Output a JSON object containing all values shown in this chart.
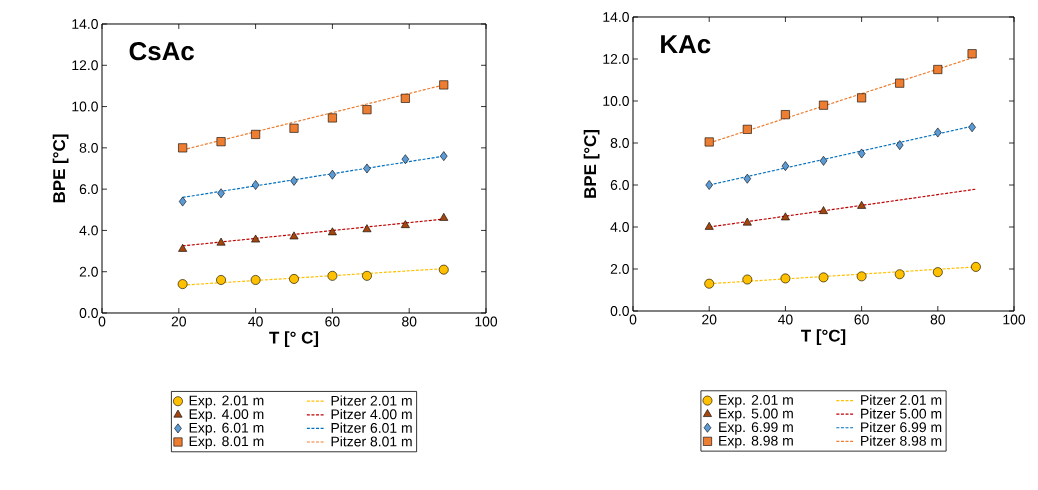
{
  "chart_data": [
    {
      "type": "scatter",
      "title": "CsAc",
      "xlabel": "T [° C]",
      "ylabel": "BPE [°C]",
      "xlim": [
        0,
        100
      ],
      "ylim": [
        0,
        14
      ],
      "xticks": [
        0,
        20,
        40,
        60,
        80,
        100
      ],
      "yticks": [
        {
          "value": 0,
          "label": "0.0"
        },
        {
          "value": 2,
          "label": "2.0"
        },
        {
          "value": 4,
          "label": "4.0"
        },
        {
          "value": 6,
          "label": "6.0"
        },
        {
          "value": 8,
          "label": "8.0"
        },
        {
          "value": 10,
          "label": "10.0"
        },
        {
          "value": 12,
          "label": "12.0"
        },
        {
          "value": 14,
          "label": "14.0"
        }
      ],
      "legend": "bottom",
      "series": [
        {
          "name": "Exp. 2.01 m",
          "marker": "circle",
          "color": "#ffc000",
          "x": [
            21,
            31,
            40,
            50,
            60,
            69,
            89
          ],
          "values": [
            1.4,
            1.6,
            1.6,
            1.65,
            1.8,
            1.8,
            2.1
          ]
        },
        {
          "name": "Pitzer 2.01 m",
          "type": "line",
          "marker": "none",
          "line_style": "dashed",
          "color": "#ffc000",
          "x": [
            21,
            89
          ],
          "values": [
            1.35,
            2.15
          ]
        },
        {
          "name": "Exp. 4.00 m",
          "marker": "triangle",
          "color": "#a5460e",
          "x": [
            21,
            31,
            40,
            50,
            60,
            69,
            79,
            89
          ],
          "values": [
            3.1,
            3.4,
            3.55,
            3.7,
            3.9,
            4.05,
            4.25,
            4.6
          ]
        },
        {
          "name": "Pitzer 4.00 m",
          "type": "line",
          "marker": "none",
          "line_style": "dashed",
          "color": "#c00000",
          "x": [
            21,
            89
          ],
          "values": [
            3.25,
            4.55
          ]
        },
        {
          "name": "Exp. 6.01 m",
          "marker": "diamond",
          "color": "#5b9bd5",
          "x": [
            21,
            31,
            40,
            50,
            60,
            69,
            79,
            89
          ],
          "values": [
            5.4,
            5.8,
            6.2,
            6.4,
            6.7,
            7.0,
            7.45,
            7.6
          ]
        },
        {
          "name": "Pitzer 6.01 m",
          "type": "line",
          "marker": "none",
          "line_style": "dashed",
          "color": "#0070c0",
          "x": [
            21,
            89
          ],
          "values": [
            5.6,
            7.6
          ]
        },
        {
          "name": "Exp. 8.01 m",
          "marker": "square",
          "color": "#ed7d31",
          "x": [
            21,
            31,
            40,
            50,
            60,
            69,
            79,
            89
          ],
          "values": [
            8.0,
            8.3,
            8.65,
            8.95,
            9.45,
            9.85,
            10.4,
            11.05
          ]
        },
        {
          "name": "Pitzer 8.01 m",
          "type": "line",
          "marker": "none",
          "line_style": "dashed",
          "color": "#ed7d31",
          "x": [
            21,
            89
          ],
          "values": [
            7.9,
            11.05
          ]
        }
      ]
    },
    {
      "type": "scatter",
      "title": "KAc",
      "xlabel": "T [°C]",
      "ylabel": "BPE [°C]",
      "xlim": [
        0,
        100
      ],
      "ylim": [
        0,
        14
      ],
      "xticks": [
        0,
        20,
        40,
        60,
        80,
        100
      ],
      "yticks": [
        {
          "value": 0,
          "label": "0.0"
        },
        {
          "value": 2,
          "label": "2.0"
        },
        {
          "value": 4,
          "label": "4.0"
        },
        {
          "value": 6,
          "label": "6.0"
        },
        {
          "value": 8,
          "label": "8.0"
        },
        {
          "value": 10,
          "label": "10.0"
        },
        {
          "value": 12,
          "label": "12.0"
        },
        {
          "value": 14,
          "label": "14.0"
        }
      ],
      "legend": "bottom",
      "series": [
        {
          "name": "Exp. 2.01 m",
          "marker": "circle",
          "color": "#ffc000",
          "x": [
            20,
            30,
            40,
            50,
            60,
            70,
            80,
            90
          ],
          "values": [
            1.3,
            1.5,
            1.55,
            1.6,
            1.65,
            1.75,
            1.85,
            2.1
          ]
        },
        {
          "name": "Pitzer 2.01 m",
          "type": "line",
          "marker": "none",
          "line_style": "dashed",
          "color": "#ffc000",
          "x": [
            20,
            90
          ],
          "values": [
            1.3,
            2.1
          ]
        },
        {
          "name": "Exp. 5.00 m",
          "marker": "triangle",
          "color": "#a5460e",
          "x": [
            20,
            30,
            40,
            50,
            60
          ],
          "values": [
            4.0,
            4.2,
            4.45,
            4.75,
            5.0
          ]
        },
        {
          "name": "Pitzer 5.00 m",
          "type": "line",
          "marker": "none",
          "line_style": "dashed",
          "color": "#c00000",
          "x": [
            20,
            90
          ],
          "values": [
            4.0,
            5.8
          ]
        },
        {
          "name": "Exp. 6.99 m",
          "marker": "diamond",
          "color": "#5b9bd5",
          "x": [
            20,
            30,
            40,
            50,
            60,
            70,
            80,
            89
          ],
          "values": [
            6.0,
            6.3,
            6.9,
            7.15,
            7.5,
            7.9,
            8.5,
            8.75
          ]
        },
        {
          "name": "Pitzer 6.99 m",
          "type": "line",
          "marker": "none",
          "line_style": "dashed",
          "color": "#0070c0",
          "x": [
            20,
            89
          ],
          "values": [
            6.0,
            8.8
          ]
        },
        {
          "name": "Exp. 8.98 m",
          "marker": "square",
          "color": "#ed7d31",
          "x": [
            20,
            30,
            40,
            50,
            60,
            70,
            80,
            89
          ],
          "values": [
            8.05,
            8.65,
            9.35,
            9.8,
            10.15,
            10.85,
            11.5,
            12.25
          ]
        },
        {
          "name": "Pitzer 8.98 m",
          "type": "line",
          "marker": "none",
          "line_style": "dashed",
          "color": "#ed7d31",
          "x": [
            20,
            89
          ],
          "values": [
            8.0,
            12.05
          ]
        }
      ]
    }
  ]
}
